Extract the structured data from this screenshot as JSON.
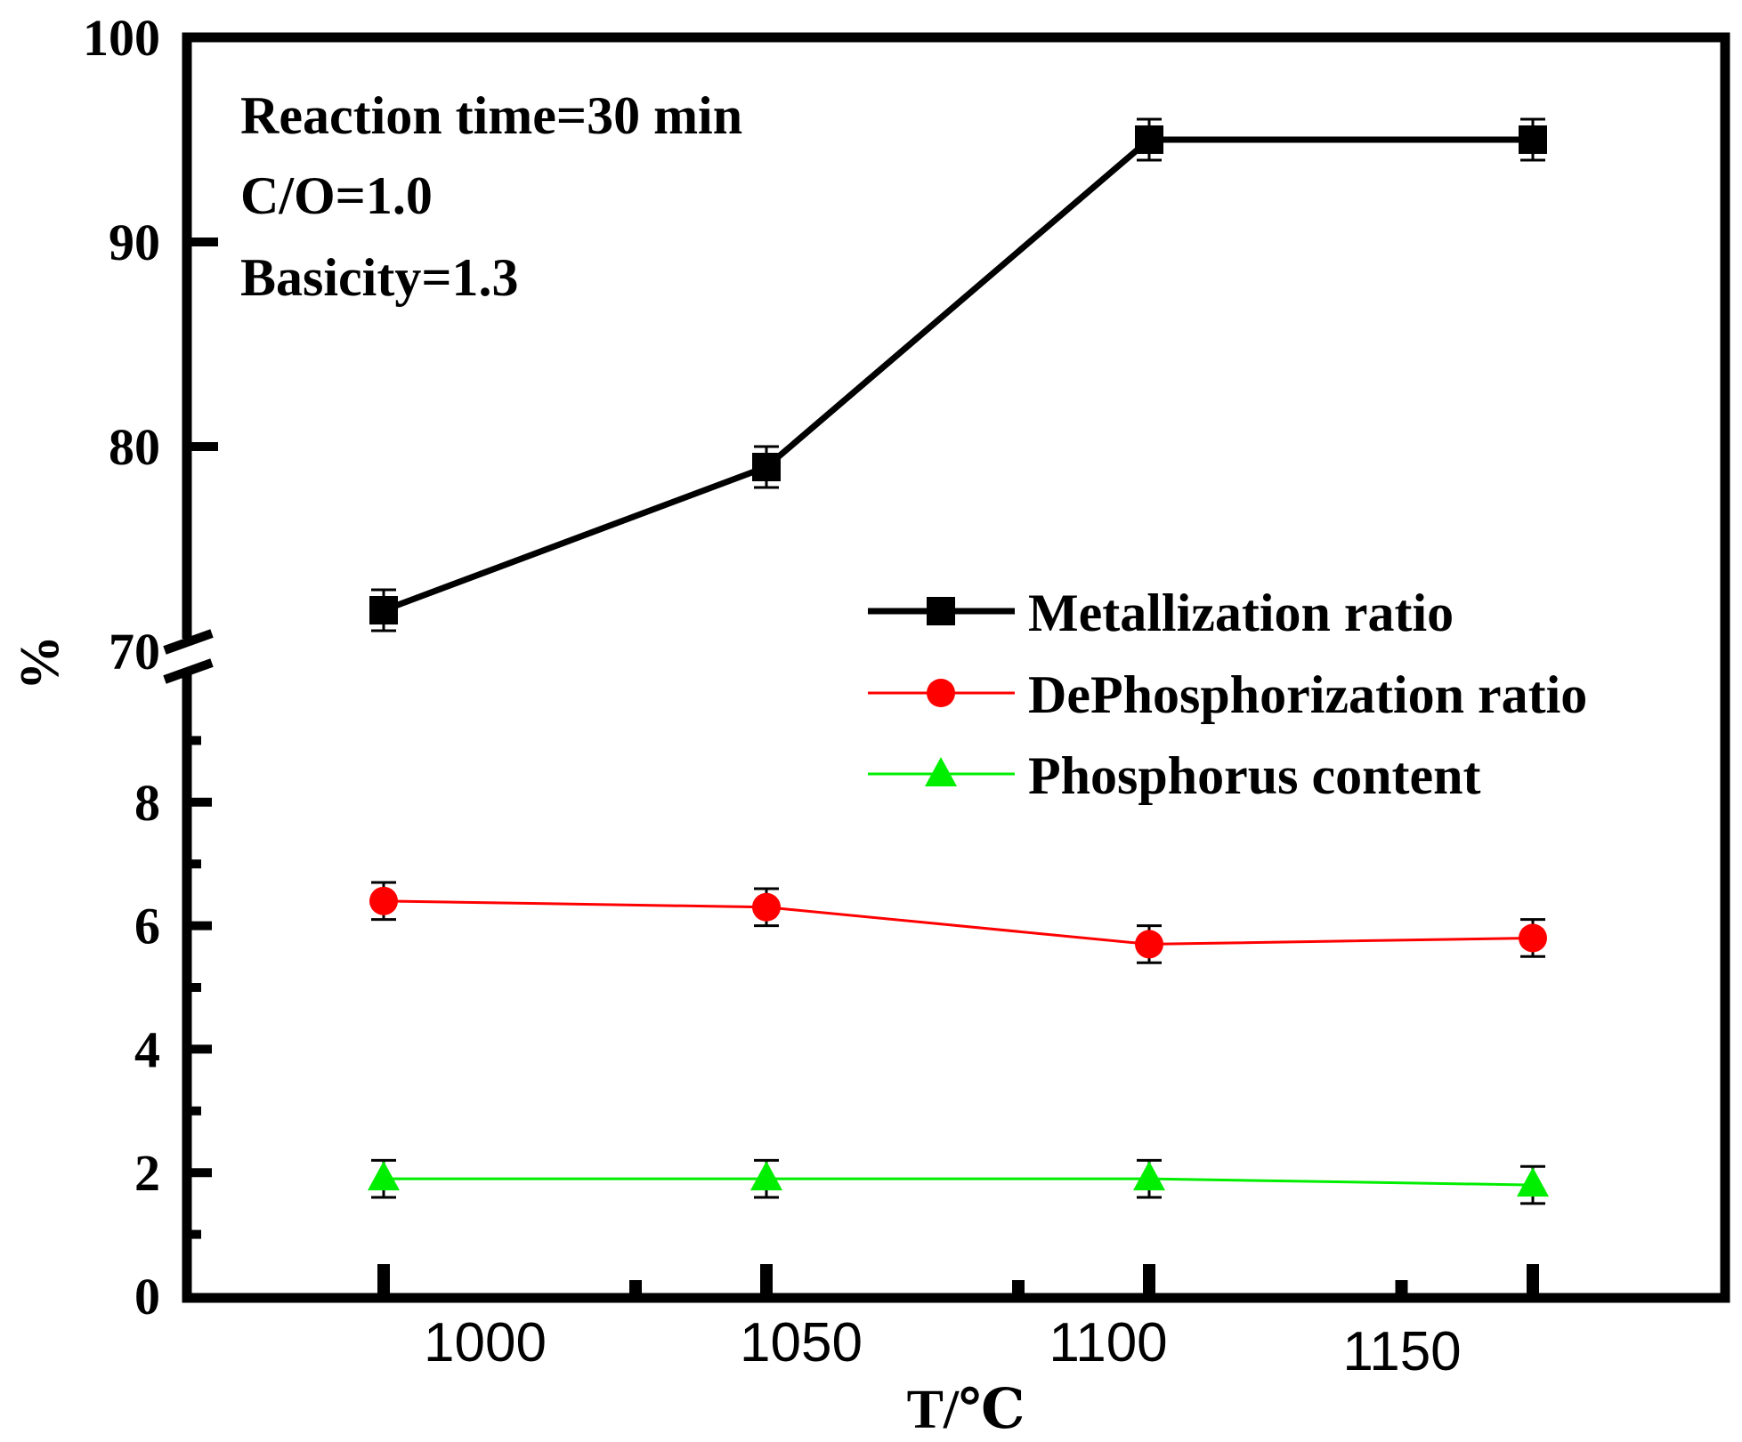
{
  "chart_data": {
    "type": "line",
    "x_tick_labels": [
      "1000",
      "1050",
      "1100",
      "1150"
    ],
    "xlabel": "T/℃",
    "ylabel": "%",
    "y_axis_break": {
      "lower_range": [
        0,
        10
      ],
      "upper_range": [
        70,
        100
      ]
    },
    "y_ticks_lower": [
      0,
      2,
      4,
      6,
      8
    ],
    "y_ticks_upper": [
      70,
      80,
      90,
      100
    ],
    "y_tick_labels_lower": [
      "0",
      "2",
      "4",
      "6",
      "8"
    ],
    "y_tick_labels_upper": [
      "70",
      "80",
      "90",
      "100"
    ],
    "categories": [
      "1000",
      "1050",
      "1100",
      "1150"
    ],
    "series": [
      {
        "name": "Metallization ratio",
        "marker": "square",
        "color": "#000000",
        "values": [
          72.0,
          79.0,
          95.0,
          95.0
        ],
        "errors": [
          1.0,
          1.0,
          1.0,
          1.0
        ]
      },
      {
        "name": "DePhosphorization ratio",
        "marker": "circle",
        "color": "#ff0000",
        "values": [
          6.4,
          6.3,
          5.7,
          5.8
        ],
        "errors": [
          0.3,
          0.3,
          0.3,
          0.3
        ]
      },
      {
        "name": "Phosphorus content",
        "marker": "triangle",
        "color": "#00ee00",
        "values": [
          1.9,
          1.9,
          1.9,
          1.8
        ],
        "errors": [
          0.3,
          0.3,
          0.3,
          0.3
        ]
      }
    ],
    "annotations": [
      "Reaction time=30 min",
      "C/O=1.0",
      "Basicity=1.3"
    ],
    "legend_position": "right-middle"
  }
}
